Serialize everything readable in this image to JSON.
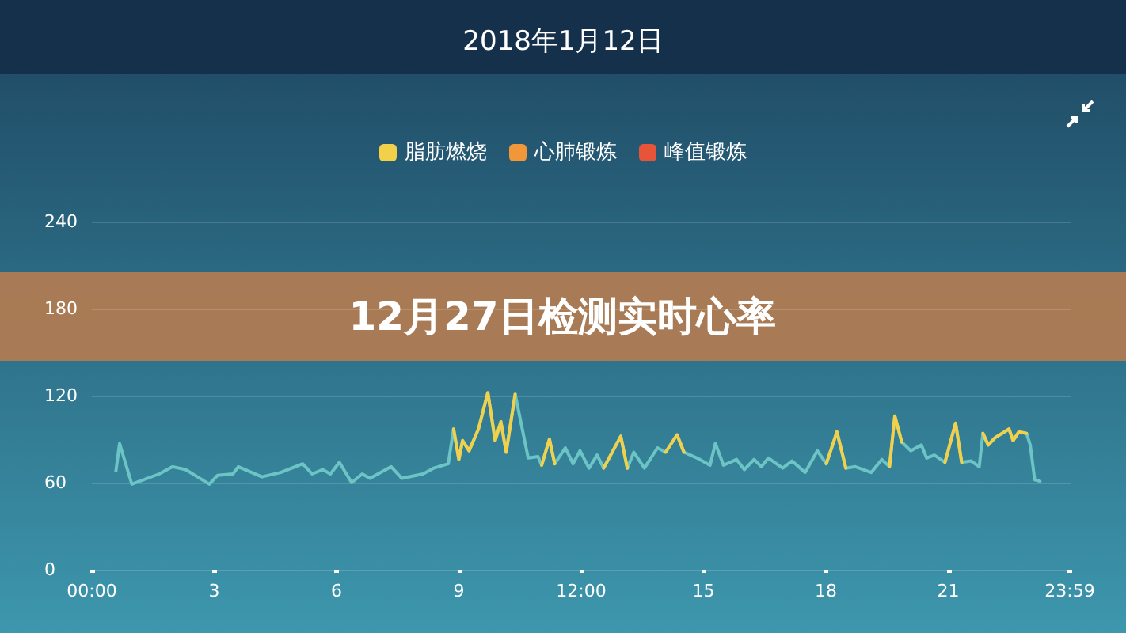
{
  "chart_data": {
    "type": "line",
    "title": "2018年1月12日",
    "annotations": [
      "12月27日检测实时心率"
    ],
    "x": [
      0.59,
      0.68,
      0.98,
      1.65,
      1.98,
      2.3,
      2.88,
      3.08,
      3.46,
      3.59,
      4.17,
      4.63,
      5.17,
      5.4,
      5.66,
      5.85,
      6.07,
      6.37,
      6.63,
      6.82,
      7.34,
      7.6,
      8.12,
      8.38,
      8.74,
      8.87,
      9.0,
      9.09,
      9.25,
      9.48,
      9.71,
      9.89,
      10.03,
      10.16,
      10.38,
      10.7,
      10.94,
      11.03,
      11.22,
      11.35,
      11.61,
      11.8,
      11.97,
      12.19,
      12.39,
      12.55,
      12.97,
      13.13,
      13.29,
      13.55,
      13.87,
      14.07,
      14.35,
      14.52,
      14.84,
      15.16,
      15.29,
      15.49,
      15.81,
      16.0,
      16.24,
      16.42,
      16.59,
      16.94,
      17.17,
      17.49,
      17.79,
      18.01,
      18.27,
      18.49,
      18.72,
      19.11,
      19.37,
      19.56,
      19.69,
      19.86,
      20.08,
      20.34,
      20.47,
      20.66,
      20.92,
      21.18,
      21.33,
      21.56,
      21.76,
      21.85,
      21.98,
      22.15,
      22.49,
      22.59,
      22.73,
      22.92,
      23.01,
      23.12,
      23.25
    ],
    "series": [
      {
        "color": "#6cc4c4",
        "values": [
          68,
          87,
          59,
          66,
          71,
          69,
          59,
          65,
          66,
          71,
          64,
          67,
          73,
          66,
          69,
          66,
          74,
          60,
          66,
          63,
          71,
          63,
          66,
          70,
          73,
          97,
          76,
          89,
          82,
          97,
          122,
          89,
          102,
          81,
          121,
          77,
          78,
          72,
          90,
          73,
          84,
          73,
          82,
          70,
          79,
          70,
          92,
          70,
          81,
          70,
          84,
          81,
          93,
          81,
          77,
          72,
          87,
          72,
          76,
          69,
          76,
          71,
          77,
          70,
          75,
          67,
          82,
          73,
          95,
          70,
          71,
          67,
          76,
          71,
          106,
          88,
          82,
          86,
          77,
          79,
          74,
          101,
          74,
          75,
          71,
          94,
          86,
          91,
          97,
          89,
          95,
          94,
          86,
          62,
          61
        ]
      },
      {
        "name": "脂肪燃烧",
        "color": "#f2d04a",
        "values": [
          null,
          null,
          null,
          null,
          null,
          null,
          null,
          null,
          null,
          null,
          null,
          null,
          null,
          null,
          null,
          null,
          null,
          null,
          null,
          null,
          null,
          null,
          null,
          null,
          null,
          97,
          76,
          89,
          82,
          97,
          122,
          89,
          102,
          81,
          121,
          null,
          null,
          72,
          90,
          73,
          null,
          null,
          null,
          null,
          null,
          70,
          92,
          70,
          null,
          null,
          null,
          81,
          93,
          81,
          null,
          null,
          null,
          null,
          null,
          null,
          null,
          null,
          null,
          null,
          null,
          null,
          null,
          73,
          95,
          70,
          null,
          null,
          null,
          71,
          106,
          88,
          null,
          null,
          null,
          null,
          74,
          101,
          74,
          null,
          null,
          94,
          86,
          91,
          97,
          89,
          95,
          94,
          null,
          null,
          null
        ]
      },
      {
        "name": "心肺锻炼",
        "color": "#f0973a",
        "values": [
          null,
          null,
          null,
          null,
          null,
          null,
          null,
          null,
          null,
          null,
          null,
          null,
          null,
          null,
          null,
          null,
          null,
          null,
          null,
          null,
          null,
          null,
          null,
          null,
          null,
          null,
          null,
          null,
          null,
          null,
          null,
          null,
          null,
          null,
          null,
          null,
          null,
          null,
          null,
          null,
          null,
          null,
          null,
          null,
          null,
          null,
          null,
          null,
          null,
          null,
          null,
          null,
          null,
          null,
          null,
          null,
          null,
          null,
          null,
          null,
          null,
          null,
          null,
          null,
          null,
          null,
          null,
          null,
          null,
          null,
          null,
          null,
          null,
          null,
          null,
          null,
          null,
          null,
          null,
          null,
          null,
          null,
          null,
          null,
          null,
          null,
          null,
          null,
          null,
          null,
          null,
          null,
          null,
          null,
          null
        ]
      },
      {
        "name": "峰值锻炼",
        "color": "#e8543a",
        "values": [
          null,
          null,
          null,
          null,
          null,
          null,
          null,
          null,
          null,
          null,
          null,
          null,
          null,
          null,
          null,
          null,
          null,
          null,
          null,
          null,
          null,
          null,
          null,
          null,
          null,
          null,
          null,
          null,
          null,
          null,
          null,
          null,
          null,
          null,
          null,
          null,
          null,
          null,
          null,
          null,
          null,
          null,
          null,
          null,
          null,
          null,
          null,
          null,
          null,
          null,
          null,
          null,
          null,
          null,
          null,
          null,
          null,
          null,
          null,
          null,
          null,
          null,
          null,
          null,
          null,
          null,
          null,
          null,
          null,
          null,
          null,
          null,
          null,
          null,
          null,
          null,
          null,
          null,
          null,
          null,
          null,
          null,
          null,
          null,
          null,
          null,
          null,
          null,
          null,
          null,
          null,
          null,
          null,
          null,
          null
        ]
      }
    ],
    "xlim": [
      0,
      24
    ],
    "xticks": [
      {
        "value": 0,
        "label": "00:00"
      },
      3,
      6,
      9,
      {
        "value": 12,
        "label": "12:00"
      },
      15,
      18,
      21,
      {
        "value": 23.98,
        "label": "23:59"
      }
    ],
    "ylim": [
      0,
      240
    ],
    "yticks": [
      0,
      60,
      120,
      180,
      240
    ],
    "grid": "y",
    "legend": "top",
    "marker": "none",
    "line_style": "solid"
  }
}
